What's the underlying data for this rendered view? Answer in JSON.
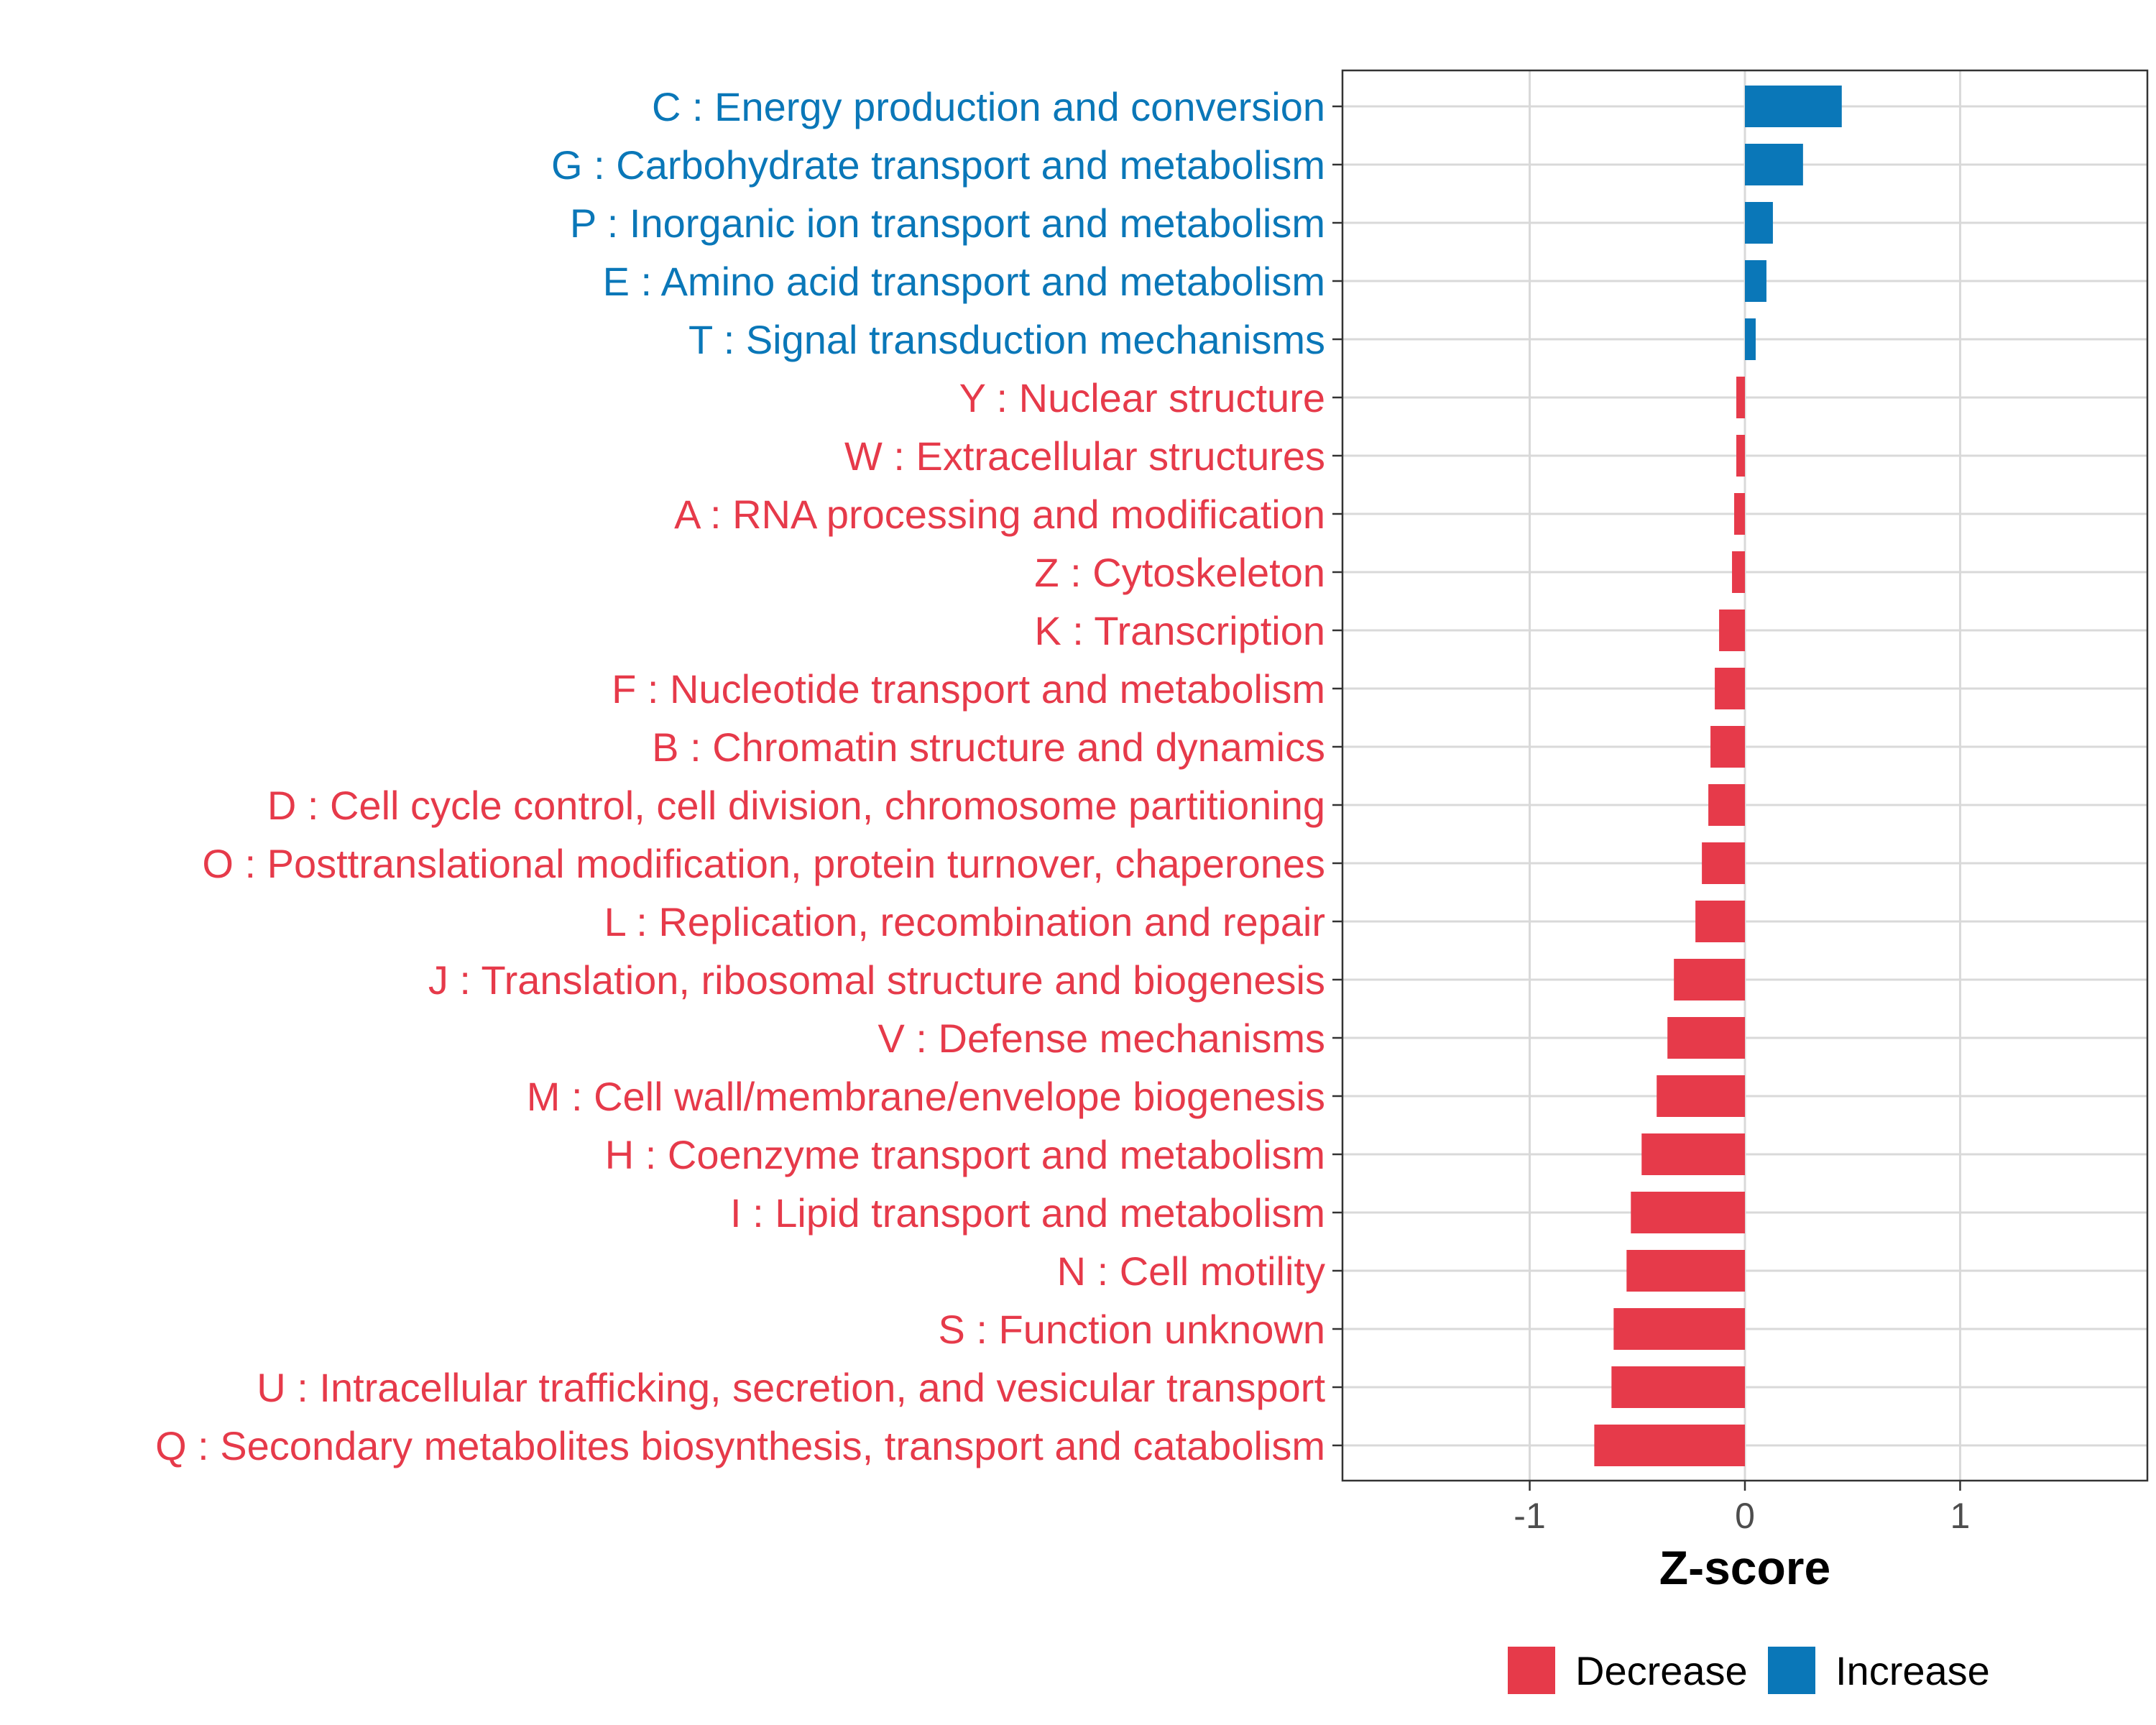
{
  "chart_data": {
    "type": "bar",
    "orientation": "horizontal",
    "title": "",
    "xlabel": "Z-score",
    "ylabel": "",
    "xlim": [
      -1.87,
      1.87
    ],
    "xticks": [
      {
        "value": -1,
        "label": "-1"
      },
      {
        "value": 0,
        "label": "0"
      },
      {
        "value": 1,
        "label": "1"
      }
    ],
    "grid": true,
    "legend_position": "bottom",
    "colors": {
      "Decrease": "#e63a4a",
      "Increase": "#0a77b8"
    },
    "legend": [
      {
        "key": "Decrease",
        "label": "Decrease",
        "color": "#e63a4a"
      },
      {
        "key": "Increase",
        "label": "Increase",
        "color": "#0a77b8"
      }
    ],
    "categories": [
      {
        "label": "C : Energy production and conversion",
        "value": 0.45,
        "group": "Increase"
      },
      {
        "label": "G : Carbohydrate transport and metabolism",
        "value": 0.27,
        "group": "Increase"
      },
      {
        "label": "P : Inorganic ion transport and metabolism",
        "value": 0.13,
        "group": "Increase"
      },
      {
        "label": "E : Amino acid transport and metabolism",
        "value": 0.1,
        "group": "Increase"
      },
      {
        "label": "T : Signal transduction mechanisms",
        "value": 0.05,
        "group": "Increase"
      },
      {
        "label": "Y : Nuclear structure",
        "value": -0.04,
        "group": "Decrease"
      },
      {
        "label": "W : Extracellular structures",
        "value": -0.04,
        "group": "Decrease"
      },
      {
        "label": "A : RNA processing and modification",
        "value": -0.05,
        "group": "Decrease"
      },
      {
        "label": "Z : Cytoskeleton",
        "value": -0.06,
        "group": "Decrease"
      },
      {
        "label": "K : Transcription",
        "value": -0.12,
        "group": "Decrease"
      },
      {
        "label": "F : Nucleotide transport and metabolism",
        "value": -0.14,
        "group": "Decrease"
      },
      {
        "label": "B : Chromatin structure and dynamics",
        "value": -0.16,
        "group": "Decrease"
      },
      {
        "label": "D : Cell cycle control, cell division, chromosome partitioning",
        "value": -0.17,
        "group": "Decrease"
      },
      {
        "label": "O : Posttranslational modification, protein turnover, chaperones",
        "value": -0.2,
        "group": "Decrease"
      },
      {
        "label": "L : Replication, recombination and repair",
        "value": -0.23,
        "group": "Decrease"
      },
      {
        "label": "J : Translation, ribosomal structure and biogenesis",
        "value": -0.33,
        "group": "Decrease"
      },
      {
        "label": "V : Defense mechanisms",
        "value": -0.36,
        "group": "Decrease"
      },
      {
        "label": "M : Cell wall/membrane/envelope biogenesis",
        "value": -0.41,
        "group": "Decrease"
      },
      {
        "label": "H : Coenzyme transport and metabolism",
        "value": -0.48,
        "group": "Decrease"
      },
      {
        "label": "I : Lipid transport and metabolism",
        "value": -0.53,
        "group": "Decrease"
      },
      {
        "label": "N : Cell motility",
        "value": -0.55,
        "group": "Decrease"
      },
      {
        "label": "S : Function unknown",
        "value": -0.61,
        "group": "Decrease"
      },
      {
        "label": "U : Intracellular trafficking, secretion, and vesicular transport",
        "value": -0.62,
        "group": "Decrease"
      },
      {
        "label": "Q : Secondary metabolites biosynthesis, transport and catabolism",
        "value": -0.7,
        "group": "Decrease"
      }
    ]
  }
}
